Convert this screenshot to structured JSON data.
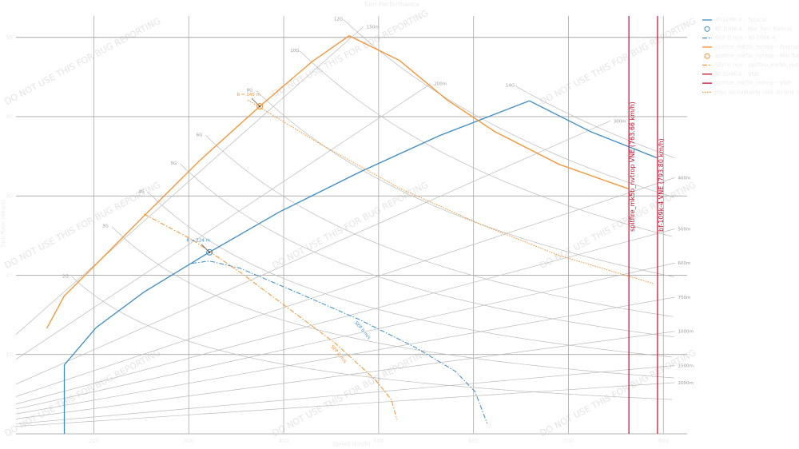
{
  "chart_data": {
    "type": "line",
    "title": "Turn Performance",
    "xlabel": "Speed (km/h)",
    "ylabel": "Turn Rate (deg/s)",
    "xlim": [
      118,
      825
    ],
    "ylim": [
      0,
      52.7
    ],
    "xticks": [
      200,
      300,
      400,
      500,
      600,
      700,
      800
    ],
    "yticks": [
      0,
      10,
      20,
      30,
      40,
      50
    ],
    "grid": true,
    "legend_position": "outside-right",
    "colors": {
      "bf109": "#3d8bc4",
      "spitfire": "#f7902f",
      "vne": "#c8102e",
      "grid": "#999999",
      "guide": "#bbbbbb"
    },
    "series": [
      {
        "name": "Bf-109K-4 - Typical",
        "color": "#3d8bc4",
        "style": "solid",
        "x": [
          168.9,
          168.9,
          202.5,
          253,
          321.8,
          395.8,
          479.8,
          563.9,
          658.8,
          723.5,
          793.3
        ],
        "y": [
          0,
          8.7,
          13.4,
          17.9,
          22.9,
          28.0,
          33.0,
          37.6,
          42.0,
          38.1,
          34.8
        ]
      },
      {
        "name": "SEP 0 m/s - Bf-109K-4",
        "color": "#3d8bc4",
        "style": "dashdot",
        "label": "SEP 0 m/s",
        "x": [
          303.4,
          321.8,
          353.8,
          412.6,
          479.8,
          538.7,
          580.7,
          601.7,
          614.3
        ],
        "y": [
          21.5,
          21.8,
          20.9,
          17.9,
          14.4,
          10.9,
          7.9,
          5.3,
          1.3
        ]
      },
      {
        "name": "spitfire_mk5b_nvtrop - Typical",
        "color": "#f7902f",
        "style": "solid",
        "x": [
          150.4,
          168.9,
          198.3,
          253,
          311.8,
          374.8,
          429.4,
          468.9,
          521.8,
          572.3,
          622.7,
          690,
          763
        ],
        "y": [
          13.3,
          17.4,
          20.9,
          27.5,
          34.5,
          41.3,
          46.9,
          50.2,
          47.1,
          42.1,
          38.1,
          34.0,
          30.9
        ]
      },
      {
        "name": "SEP 0 m/s - spitfire_mk5b_nvtrop",
        "color": "#f7902f",
        "style": "dashdot",
        "label": "SEP 0 m/s",
        "x": [
          253,
          303.4,
          353.8,
          404.2,
          454.6,
          496.6,
          513.4,
          519.3
        ],
        "y": [
          27.7,
          24.5,
          20.4,
          15.9,
          11.4,
          6.8,
          4.3,
          1.8
        ]
      },
      {
        "name": "Max sustainable rate on one circle (1 km)",
        "color": "#f7902f",
        "style": "dotted",
        "x": [
          362.2,
          437.8,
          521.8,
          605.9,
          690,
          790.8
        ],
        "y": [
          42.1,
          36.6,
          31.0,
          26.5,
          22.5,
          18.9
        ]
      }
    ],
    "min_radius_points": [
      {
        "name": "Bf-109K-4 - Min Turn Radius",
        "color": "#3d8bc4",
        "x": 321.8,
        "y": 22.9,
        "label": "R = 224 m"
      },
      {
        "name": "spitfire_mk5b_nvtrop - Min Turn Radius",
        "color": "#f7902f",
        "x": 374.8,
        "y": 41.3,
        "label": "R = 145 m"
      }
    ],
    "vne_lines": [
      {
        "name": "Bf-109K-4 - VNE",
        "x": 793.8,
        "label": "bf-109k-4 VNE (793.80 km/h)"
      },
      {
        "name": "spitfire_mk5b_nvtrop - VNE",
        "x": 763.66,
        "label": "spitfire_mk5b_nvtrop VNE (763.66 km/h)"
      }
    ],
    "g_lines": [
      {
        "g": 2,
        "label": "2G",
        "x_start": 177
      },
      {
        "g": 3,
        "label": "3G",
        "x_start": 219
      },
      {
        "g": 4,
        "label": "4G",
        "x_start": 257
      },
      {
        "g": 5,
        "label": "5G",
        "x_start": 291
      },
      {
        "g": 6,
        "label": "6G",
        "x_start": 318
      },
      {
        "g": 8,
        "label": "8G",
        "x_start": 371
      },
      {
        "g": 10,
        "label": "10G",
        "x_start": 417
      },
      {
        "g": 12,
        "label": "12G",
        "x_start": 463
      },
      {
        "g": 14,
        "label": "14G",
        "x_start": 644
      }
    ],
    "radius_lines": [
      {
        "r": 150,
        "label": "150m",
        "x_end": 484
      },
      {
        "r": 200,
        "label": "200m",
        "x_end": 555
      },
      {
        "r": 300,
        "label": "300m",
        "x_end": 744
      },
      {
        "r": 400,
        "label": "400m",
        "x_end": 812
      },
      {
        "r": 500,
        "label": "500m",
        "x_end": 812
      },
      {
        "r": 600,
        "label": "600m",
        "x_end": 812
      },
      {
        "r": 750,
        "label": "750m",
        "x_end": 812
      },
      {
        "r": 1000,
        "label": "1000m",
        "x_end": 812
      },
      {
        "r": 1500,
        "label": "1500m",
        "x_end": 812
      },
      {
        "r": 2000,
        "label": "2000m",
        "x_end": 812
      }
    ],
    "watermark": "DO NOT USE THIS FOR BUG REPORTING"
  }
}
